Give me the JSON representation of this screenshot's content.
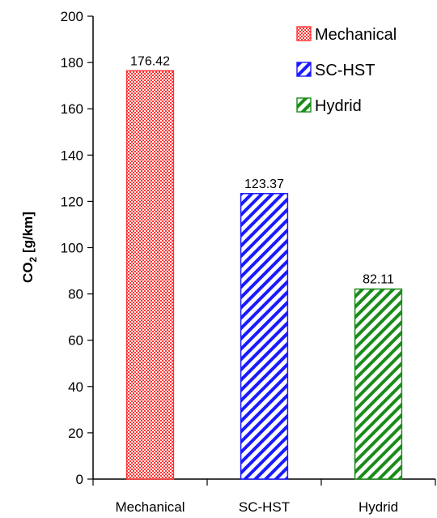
{
  "chart_data": {
    "type": "bar",
    "categories": [
      "Mechanical",
      "SC-HST",
      "Hydrid"
    ],
    "values": [
      176.42,
      123.37,
      82.11
    ],
    "data_labels": [
      "176.42",
      "123.37",
      "82.11"
    ],
    "series_names": [
      "Mechanical",
      "SC-HST",
      "Hydrid"
    ],
    "colors": [
      "#ff3333",
      "#1a1aff",
      "#1a8c1a"
    ],
    "patterns": [
      "checker",
      "diagonal",
      "diagonal"
    ],
    "ylabel": {
      "main": "CO",
      "sub": "2",
      "unit": " [g/km]"
    },
    "ylim": [
      0,
      200
    ],
    "yticks": [
      "0",
      "20",
      "40",
      "60",
      "80",
      "100",
      "120",
      "140",
      "160",
      "180",
      "200"
    ],
    "grid": false,
    "legend": {
      "position": "top-right",
      "entries": [
        "Mechanical",
        "SC-HST",
        "Hydrid"
      ]
    }
  }
}
